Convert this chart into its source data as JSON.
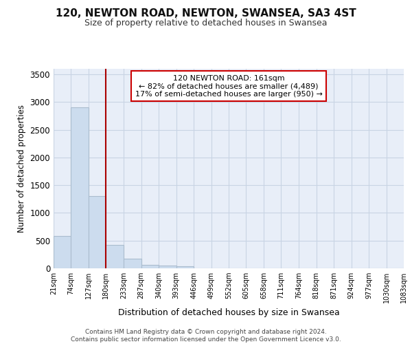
{
  "title": "120, NEWTON ROAD, NEWTON, SWANSEA, SA3 4ST",
  "subtitle": "Size of property relative to detached houses in Swansea",
  "xlabel": "Distribution of detached houses by size in Swansea",
  "ylabel": "Number of detached properties",
  "bar_color": "#ccdcee",
  "bar_edge_color": "#aabcce",
  "grid_color": "#c8d4e4",
  "background_color": "#e8eef8",
  "vline_x": 180,
  "vline_color": "#aa0000",
  "annotation_text": "120 NEWTON ROAD: 161sqm\n← 82% of detached houses are smaller (4,489)\n17% of semi-detached houses are larger (950) →",
  "annotation_box_color": "#ffffff",
  "annotation_box_edge": "#cc0000",
  "footer": "Contains HM Land Registry data © Crown copyright and database right 2024.\nContains public sector information licensed under the Open Government Licence v3.0.",
  "bins": [
    21,
    74,
    127,
    180,
    233,
    287,
    340,
    393,
    446,
    499,
    552,
    605,
    658,
    711,
    764,
    818,
    871,
    924,
    977,
    1030,
    1083
  ],
  "counts": [
    580,
    2900,
    1300,
    420,
    175,
    65,
    50,
    40,
    0,
    0,
    0,
    0,
    0,
    0,
    0,
    0,
    0,
    0,
    0,
    0
  ],
  "ylim": [
    0,
    3600
  ],
  "yticks": [
    0,
    500,
    1000,
    1500,
    2000,
    2500,
    3000,
    3500
  ]
}
